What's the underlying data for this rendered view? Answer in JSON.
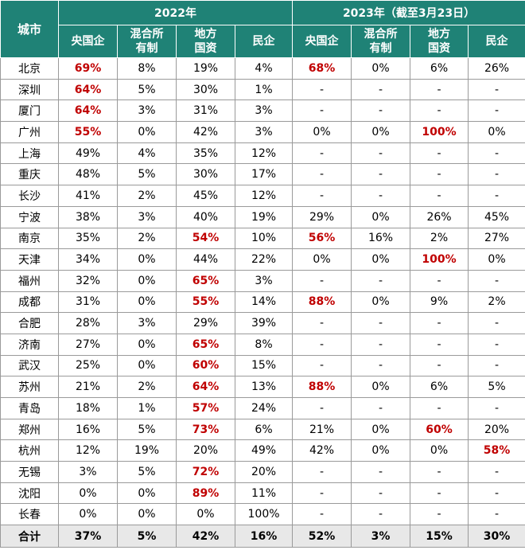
{
  "header": {
    "city_label": "城市",
    "year_2022": "2022年",
    "year_2023": "2023年（截至3月23日）",
    "columns_2022": [
      "央国企",
      "混合所\n有制",
      "地方\n国资",
      "民企"
    ],
    "columns_2023": [
      "央国企",
      "混合所\n有制",
      "地方\n国资",
      "民企"
    ]
  },
  "colors": {
    "header_bg": "#1f8276",
    "highlight": "#c00000",
    "total_bg": "#e8e8e8"
  },
  "rows": [
    {
      "city": "北京",
      "v": [
        "69%",
        "8%",
        "19%",
        "4%",
        "68%",
        "0%",
        "6%",
        "26%"
      ],
      "hl": [
        0,
        4
      ]
    },
    {
      "city": "深圳",
      "v": [
        "64%",
        "5%",
        "30%",
        "1%",
        "-",
        "-",
        "-",
        "-"
      ],
      "hl": [
        0
      ]
    },
    {
      "city": "厦门",
      "v": [
        "64%",
        "3%",
        "31%",
        "3%",
        "-",
        "-",
        "-",
        "-"
      ],
      "hl": [
        0
      ]
    },
    {
      "city": "广州",
      "v": [
        "55%",
        "0%",
        "42%",
        "3%",
        "0%",
        "0%",
        "100%",
        "0%"
      ],
      "hl": [
        0,
        6
      ]
    },
    {
      "city": "上海",
      "v": [
        "49%",
        "4%",
        "35%",
        "12%",
        "-",
        "-",
        "-",
        "-"
      ],
      "hl": []
    },
    {
      "city": "重庆",
      "v": [
        "48%",
        "5%",
        "30%",
        "17%",
        "-",
        "-",
        "-",
        "-"
      ],
      "hl": []
    },
    {
      "city": "长沙",
      "v": [
        "41%",
        "2%",
        "45%",
        "12%",
        "-",
        "-",
        "-",
        "-"
      ],
      "hl": []
    },
    {
      "city": "宁波",
      "v": [
        "38%",
        "3%",
        "40%",
        "19%",
        "29%",
        "0%",
        "26%",
        "45%"
      ],
      "hl": []
    },
    {
      "city": "南京",
      "v": [
        "35%",
        "2%",
        "54%",
        "10%",
        "56%",
        "16%",
        "2%",
        "27%"
      ],
      "hl": [
        2,
        4
      ]
    },
    {
      "city": "天津",
      "v": [
        "34%",
        "0%",
        "44%",
        "22%",
        "0%",
        "0%",
        "100%",
        "0%"
      ],
      "hl": [
        6
      ]
    },
    {
      "city": "福州",
      "v": [
        "32%",
        "0%",
        "65%",
        "3%",
        "-",
        "-",
        "-",
        "-"
      ],
      "hl": [
        2
      ]
    },
    {
      "city": "成都",
      "v": [
        "31%",
        "0%",
        "55%",
        "14%",
        "88%",
        "0%",
        "9%",
        "2%"
      ],
      "hl": [
        2,
        4
      ]
    },
    {
      "city": "合肥",
      "v": [
        "28%",
        "3%",
        "29%",
        "39%",
        "-",
        "-",
        "-",
        "-"
      ],
      "hl": []
    },
    {
      "city": "济南",
      "v": [
        "27%",
        "0%",
        "65%",
        "8%",
        "-",
        "-",
        "-",
        "-"
      ],
      "hl": [
        2
      ]
    },
    {
      "city": "武汉",
      "v": [
        "25%",
        "0%",
        "60%",
        "15%",
        "-",
        "-",
        "-",
        "-"
      ],
      "hl": [
        2
      ]
    },
    {
      "city": "苏州",
      "v": [
        "21%",
        "2%",
        "64%",
        "13%",
        "88%",
        "0%",
        "6%",
        "5%"
      ],
      "hl": [
        2,
        4
      ]
    },
    {
      "city": "青岛",
      "v": [
        "18%",
        "1%",
        "57%",
        "24%",
        "-",
        "-",
        "-",
        "-"
      ],
      "hl": [
        2
      ]
    },
    {
      "city": "郑州",
      "v": [
        "16%",
        "5%",
        "73%",
        "6%",
        "21%",
        "0%",
        "60%",
        "20%"
      ],
      "hl": [
        2,
        6
      ]
    },
    {
      "city": "杭州",
      "v": [
        "12%",
        "19%",
        "20%",
        "49%",
        "42%",
        "0%",
        "0%",
        "58%"
      ],
      "hl": [
        7
      ]
    },
    {
      "city": "无锡",
      "v": [
        "3%",
        "5%",
        "72%",
        "20%",
        "-",
        "-",
        "-",
        "-"
      ],
      "hl": [
        2
      ]
    },
    {
      "city": "沈阳",
      "v": [
        "0%",
        "0%",
        "89%",
        "11%",
        "-",
        "-",
        "-",
        "-"
      ],
      "hl": [
        2
      ]
    },
    {
      "city": "长春",
      "v": [
        "0%",
        "0%",
        "0%",
        "100%",
        "-",
        "-",
        "-",
        "-"
      ],
      "hl": []
    }
  ],
  "total": {
    "city": "合计",
    "v": [
      "37%",
      "5%",
      "42%",
      "16%",
      "52%",
      "3%",
      "15%",
      "30%"
    ]
  }
}
